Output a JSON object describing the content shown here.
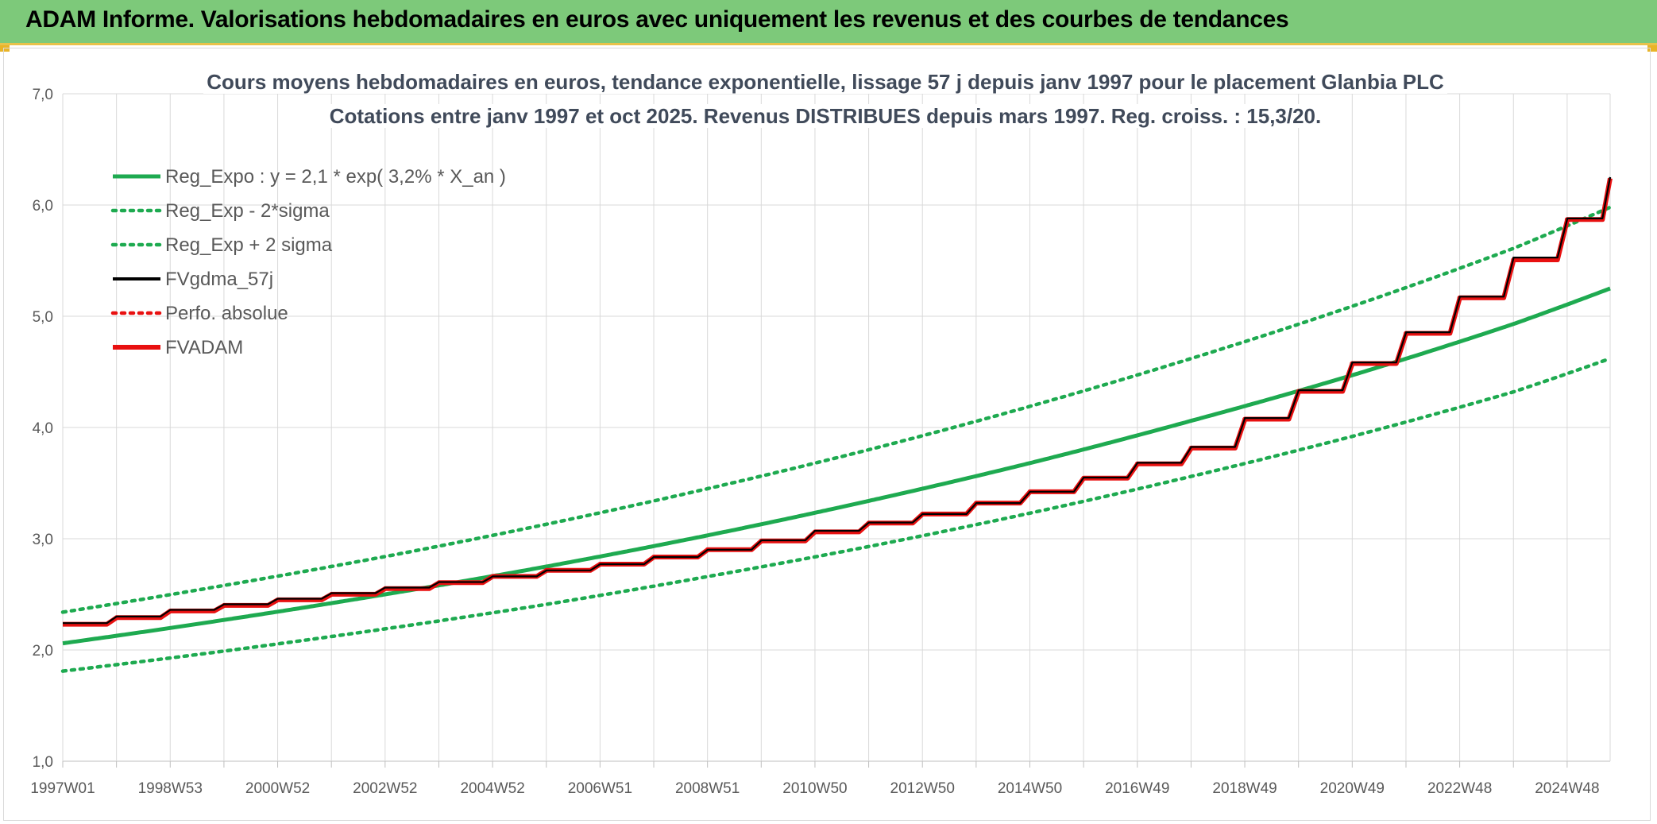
{
  "header": {
    "title": "ADAM Informe. Valorisations hebdomadaires en euros avec uniquement les revenus et des courbes de tendances"
  },
  "chart_data": {
    "type": "line",
    "title_line1": "Cours moyens hebdomadaires en euros, tendance exponentielle, lissage 57 j depuis janv 1997 pour le placement Glanbia PLC",
    "title_line2": "Cotations entre janv 1997 et oct 2025. Revenus DISTRIBUES depuis mars 1997. Reg. croiss. : 15,3/20.",
    "ylim": [
      1.0,
      7.0
    ],
    "y_ticks": [
      "1,0",
      "2,0",
      "3,0",
      "4,0",
      "5,0",
      "6,0",
      "7,0"
    ],
    "x_range_years": [
      1997.0,
      2025.8
    ],
    "x_tick_labels": [
      "1997W01",
      "1998W53",
      "2000W52",
      "2002W52",
      "2004W52",
      "2006W51",
      "2008W51",
      "2010W50",
      "2012W50",
      "2014W50",
      "2016W49",
      "2018W49",
      "2020W49",
      "2022W48",
      "2024W48"
    ],
    "x_tick_years": [
      1997.0,
      1999.0,
      2001.0,
      2003.0,
      2005.0,
      2007.0,
      2009.0,
      2011.0,
      2013.0,
      2015.0,
      2017.0,
      2019.0,
      2021.0,
      2023.0,
      2025.0
    ],
    "grid": true,
    "legend_position": "top-left",
    "series": [
      {
        "name": "Reg_Expo : y = 2,1 * exp( 3,2% *  X_an )",
        "style": "solid",
        "color": "#1eaa50",
        "x": [
          1997.0,
          2000.0,
          2003.0,
          2006.0,
          2009.0,
          2012.0,
          2015.0,
          2018.0,
          2021.0,
          2024.0,
          2025.8
        ],
        "y": [
          2.06,
          2.27,
          2.5,
          2.75,
          3.03,
          3.34,
          3.68,
          4.06,
          4.47,
          4.93,
          5.25
        ]
      },
      {
        "name": "Reg_Exp - 2*sigma",
        "style": "dotted",
        "color": "#1eaa50",
        "x": [
          1997.0,
          2000.0,
          2003.0,
          2006.0,
          2009.0,
          2012.0,
          2015.0,
          2018.0,
          2021.0,
          2024.0,
          2025.8
        ],
        "y": [
          1.81,
          1.99,
          2.19,
          2.41,
          2.66,
          2.93,
          3.23,
          3.56,
          3.92,
          4.32,
          4.62
        ]
      },
      {
        "name": "Reg_Exp + 2 sigma",
        "style": "dotted",
        "color": "#1eaa50",
        "x": [
          1997.0,
          2000.0,
          2003.0,
          2006.0,
          2009.0,
          2012.0,
          2015.0,
          2018.0,
          2021.0,
          2024.0,
          2025.8
        ],
        "y": [
          2.34,
          2.58,
          2.84,
          3.13,
          3.45,
          3.8,
          4.19,
          4.62,
          5.09,
          5.61,
          5.98
        ]
      },
      {
        "name": "FVgdma_57j",
        "style": "solid",
        "color": "#000000",
        "x": [
          1997.0,
          1999.0,
          2001.0,
          2003.0,
          2005.0,
          2007.0,
          2009.0,
          2011.0,
          2013.0,
          2015.0,
          2017.0,
          2018.0,
          2019.0,
          2020.0,
          2021.0,
          2022.0,
          2023.0,
          2024.0,
          2025.0,
          2025.8
        ],
        "y": [
          2.24,
          2.36,
          2.46,
          2.56,
          2.66,
          2.77,
          2.9,
          3.07,
          3.22,
          3.42,
          3.68,
          3.82,
          4.08,
          4.33,
          4.58,
          4.85,
          5.17,
          5.52,
          5.87,
          6.25
        ]
      },
      {
        "name": "Perfo. absolue",
        "style": "dotted",
        "color": "#e81010",
        "x": [],
        "y": []
      },
      {
        "name": "FVADAM",
        "style": "step",
        "color": "#e81010",
        "x": [
          1997.0,
          1999.0,
          2001.0,
          2003.0,
          2005.0,
          2007.0,
          2009.0,
          2011.0,
          2013.0,
          2015.0,
          2017.0,
          2018.0,
          2019.0,
          2020.0,
          2021.0,
          2022.0,
          2023.0,
          2024.0,
          2025.0,
          2025.8
        ],
        "y": [
          2.23,
          2.35,
          2.45,
          2.55,
          2.66,
          2.77,
          2.9,
          3.06,
          3.22,
          3.42,
          3.67,
          3.81,
          4.07,
          4.32,
          4.57,
          4.84,
          5.16,
          5.5,
          5.86,
          6.24
        ]
      }
    ]
  }
}
